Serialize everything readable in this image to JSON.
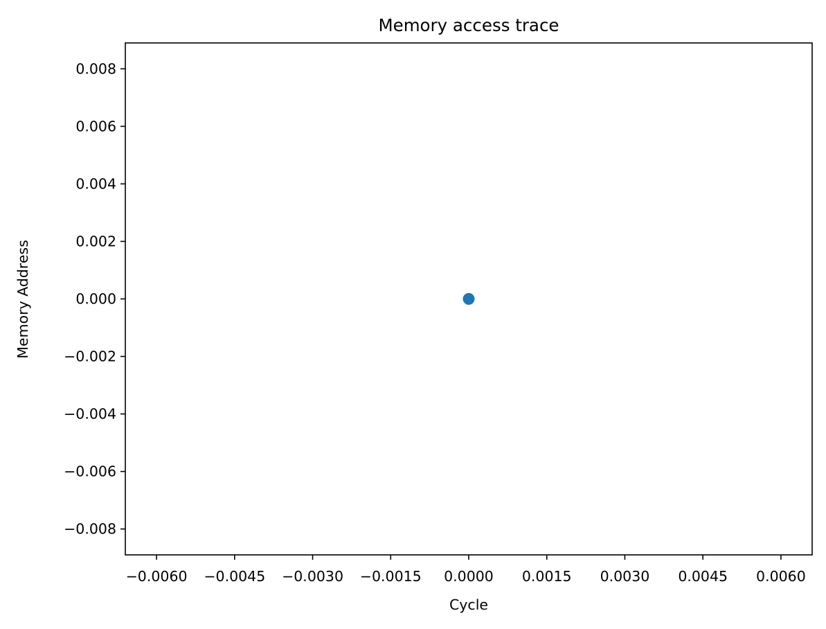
{
  "chart_data": {
    "type": "scatter",
    "title": "Memory access trace",
    "xlabel": "Cycle",
    "ylabel": "Memory Address",
    "xlim": [
      -0.0066,
      0.0066
    ],
    "ylim": [
      -0.0089,
      0.0089
    ],
    "x_ticks": [
      -0.006,
      -0.0045,
      -0.003,
      -0.0015,
      0.0,
      0.0015,
      0.003,
      0.0045,
      0.006
    ],
    "x_tick_labels": [
      "−0.0060",
      "−0.0045",
      "−0.0030",
      "−0.0015",
      "0.0000",
      "0.0015",
      "0.0030",
      "0.0045",
      "0.0060"
    ],
    "y_ticks": [
      -0.008,
      -0.006,
      -0.004,
      -0.002,
      0.0,
      0.002,
      0.004,
      0.006,
      0.008
    ],
    "y_tick_labels": [
      "−0.008",
      "−0.006",
      "−0.004",
      "−0.002",
      "0.000",
      "0.002",
      "0.004",
      "0.006",
      "0.008"
    ],
    "grid": false,
    "series": [
      {
        "color": "#1f77b4",
        "points": [
          {
            "x": 0.0,
            "y": 0.0
          }
        ]
      }
    ]
  }
}
